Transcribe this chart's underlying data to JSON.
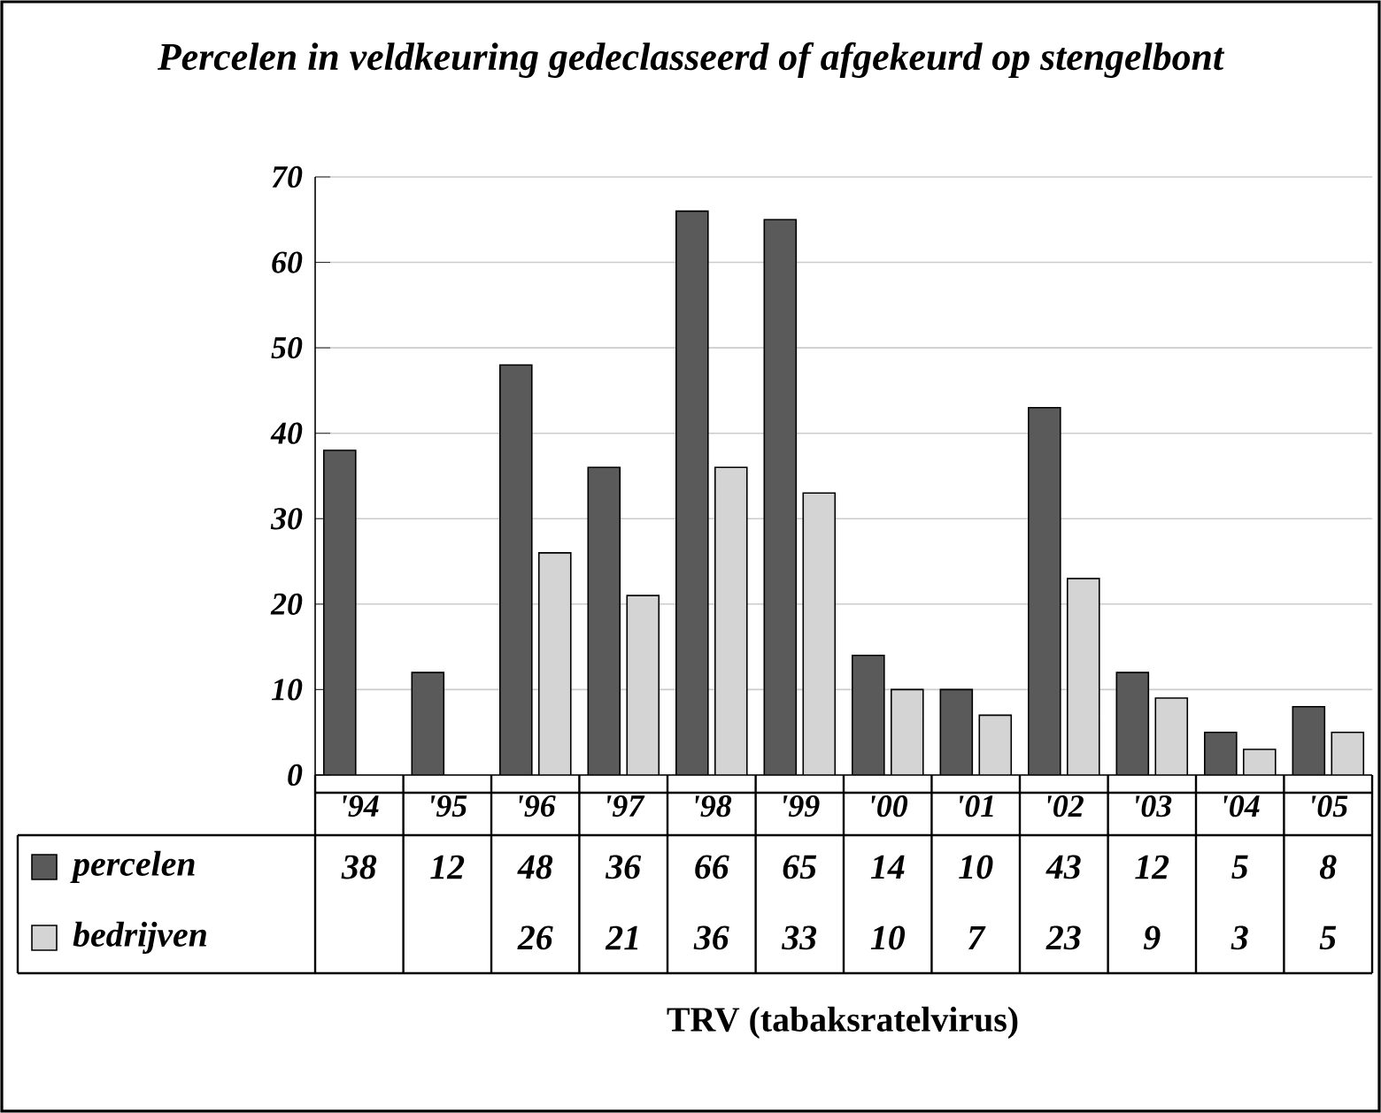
{
  "chart_data": {
    "type": "bar",
    "title": "Percelen in veldkeuring gedeclasseerd of afgekeurd op stengelbont",
    "annotations": [
      "TRV (tabaksratelvirus)"
    ],
    "categories": [
      "'94",
      "'95",
      "'96",
      "'97",
      "'98",
      "'99",
      "'00",
      "'01",
      "'02",
      "'03",
      "'04",
      "'05"
    ],
    "series": [
      {
        "name": "percelen",
        "color": "#5a5a5a",
        "values": [
          38,
          12,
          48,
          36,
          66,
          65,
          14,
          10,
          43,
          12,
          5,
          8
        ]
      },
      {
        "name": "bedrijven",
        "color": "#d4d4d4",
        "values": [
          null,
          null,
          26,
          21,
          36,
          33,
          10,
          7,
          23,
          9,
          3,
          5
        ]
      }
    ],
    "ylim": [
      0,
      70
    ],
    "yticks": [
      0,
      10,
      20,
      30,
      40,
      50,
      60,
      70
    ],
    "grid": "y",
    "legend": "bottom",
    "data_labels": true
  }
}
